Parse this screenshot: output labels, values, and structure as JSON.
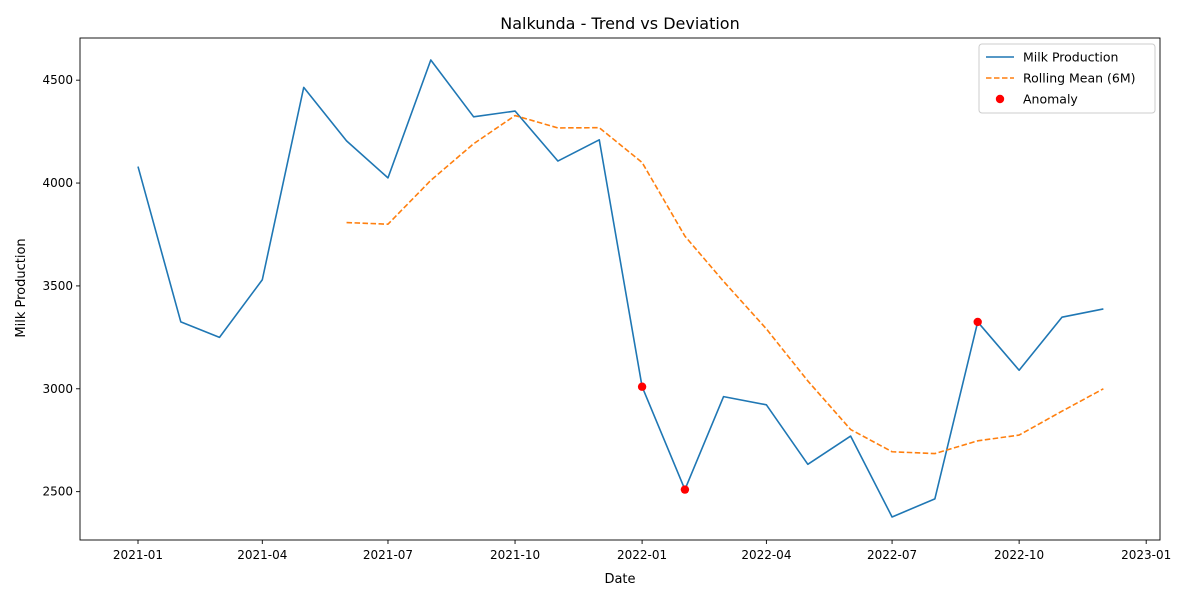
{
  "chart_data": {
    "type": "line",
    "title": "Nalkunda - Trend vs Deviation",
    "xlabel": "Date",
    "ylabel": "Milk Production",
    "x": [
      "2021-01",
      "2021-02",
      "2021-03",
      "2021-04",
      "2021-05",
      "2021-06",
      "2021-07",
      "2021-08",
      "2021-09",
      "2021-10",
      "2021-11",
      "2021-12",
      "2022-01",
      "2022-02",
      "2022-03",
      "2022-04",
      "2022-05",
      "2022-06",
      "2022-07",
      "2022-08",
      "2022-09",
      "2022-10",
      "2022-11",
      "2022-12"
    ],
    "xticks": [
      "2021-01",
      "2021-04",
      "2021-07",
      "2021-10",
      "2022-01",
      "2022-04",
      "2022-07",
      "2022-10",
      "2023-01"
    ],
    "yticks": [
      2500,
      3000,
      3500,
      4000,
      4500
    ],
    "ylim": [
      2265,
      4705
    ],
    "xlim": [
      "2020-11-20",
      "2023-01-11"
    ],
    "legend_position": "upper right",
    "series": [
      {
        "name": "Milk Production",
        "style": "solid",
        "color": "#1f77b4",
        "values": [
          4080,
          3325,
          3250,
          3530,
          4465,
          4205,
          4025,
          4598,
          4322,
          4350,
          4107,
          4210,
          3010,
          2510,
          2962,
          2922,
          2633,
          2770,
          2377,
          2465,
          3325,
          3090,
          3348,
          3388
        ]
      },
      {
        "name": "Rolling Mean (6M)",
        "style": "dashed",
        "color": "#ff7f0e",
        "values": [
          null,
          null,
          null,
          null,
          null,
          3808,
          3800,
          4013,
          4191,
          4328,
          4268,
          4269,
          4100,
          3742,
          3522,
          3291,
          3038,
          2802,
          2694,
          2685,
          2747,
          2775,
          2891,
          3000
        ]
      }
    ],
    "anomalies": {
      "name": "Anomaly",
      "color": "#ff0000",
      "points": [
        {
          "x": "2022-01",
          "y": 3010
        },
        {
          "x": "2022-02",
          "y": 2510
        },
        {
          "x": "2022-09",
          "y": 3325
        }
      ]
    }
  }
}
